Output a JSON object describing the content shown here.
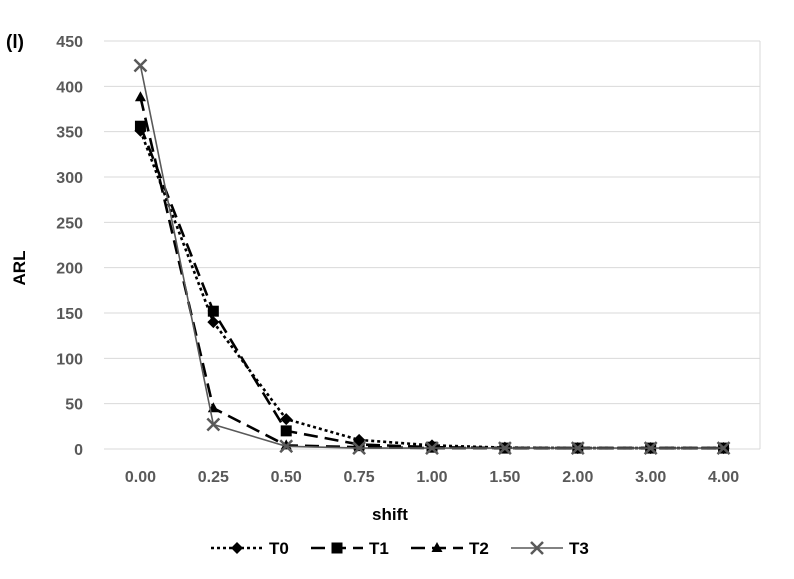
{
  "panel_label": "(l)",
  "chart_data": {
    "type": "line",
    "xlabel": "shift",
    "ylabel": "ARL",
    "categories": [
      "0.00",
      "0.25",
      "0.50",
      "0.75",
      "1.00",
      "1.50",
      "2.00",
      "3.00",
      "4.00"
    ],
    "ylim": [
      0,
      450
    ],
    "yticks": [
      "0",
      "50",
      "100",
      "150",
      "200",
      "250",
      "300",
      "350",
      "400",
      "450"
    ],
    "grid": "horizontal",
    "legend_position": "bottom",
    "series": [
      {
        "name": "T0",
        "values": [
          351,
          140,
          33,
          10,
          4,
          1.5,
          1,
          1,
          1
        ],
        "line_style": "dotted",
        "marker": "diamond",
        "color": "#000000"
      },
      {
        "name": "T1",
        "values": [
          356,
          152,
          20,
          5,
          2,
          1,
          1,
          1,
          1
        ],
        "line_style": "dashed",
        "marker": "square",
        "color": "#000000"
      },
      {
        "name": "T2",
        "values": [
          388,
          45,
          4,
          2,
          1,
          1,
          1,
          1,
          1
        ],
        "line_style": "dashed",
        "marker": "triangle",
        "color": "#000000"
      },
      {
        "name": "T3",
        "values": [
          423,
          27,
          3,
          1,
          1,
          1,
          1,
          1,
          1
        ],
        "line_style": "solid",
        "marker": "x",
        "color": "#595959"
      }
    ]
  }
}
